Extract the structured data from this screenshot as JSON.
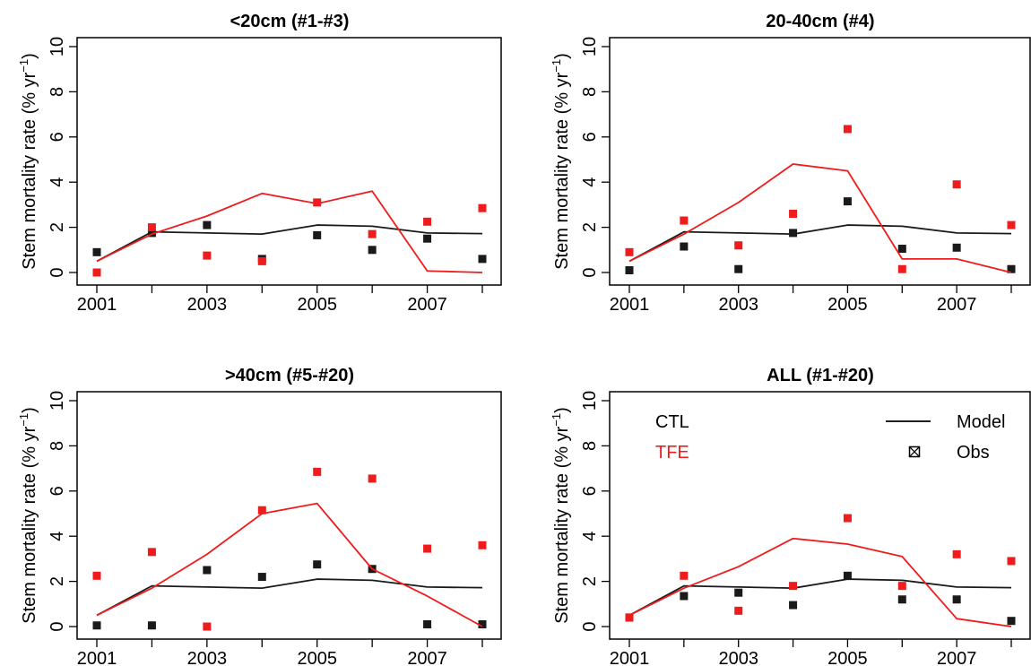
{
  "colors": {
    "ctl": "#1a1a1a",
    "tfe": "#ee1c1c"
  },
  "legend": {
    "group_labels": [
      "CTL",
      "TFE"
    ],
    "model_label": "Model",
    "obs_label": "Obs",
    "panel": 3
  },
  "chart_data": [
    {
      "type": "line",
      "title": "<20cm (#1-#3)",
      "ylabel": "Stem mortality rate (% yr⁻¹)",
      "ylabel_text": "Stem mortality rate (% yr",
      "ylabel_sup": "−1",
      "ylabel_close": ")",
      "xlim": [
        2001,
        2008
      ],
      "ylim": [
        0,
        10
      ],
      "xticks": [
        "2001",
        "2003",
        "2005",
        "2007"
      ],
      "yticks": [
        "0",
        "2",
        "4",
        "6",
        "8",
        "10"
      ],
      "x": [
        2001,
        2002,
        2003,
        2004,
        2005,
        2006,
        2007,
        2008
      ],
      "series": [
        {
          "name": "CTL",
          "model": [
            0.5,
            1.8,
            1.75,
            1.7,
            2.1,
            2.05,
            1.75,
            1.72
          ],
          "obs": [
            0.9,
            1.75,
            2.1,
            0.6,
            1.65,
            1.0,
            1.5,
            0.6
          ]
        },
        {
          "name": "TFE",
          "model": [
            0.5,
            1.7,
            2.5,
            3.5,
            3.05,
            3.6,
            0.07,
            0.0
          ],
          "obs": [
            0.0,
            2.0,
            0.75,
            0.5,
            3.1,
            1.7,
            2.25,
            2.85
          ]
        }
      ]
    },
    {
      "type": "line",
      "title": "20-40cm (#4)",
      "ylabel": "Stem mortality rate (% yr⁻¹)",
      "ylabel_text": "Stem mortality rate (% yr",
      "ylabel_sup": "−1",
      "ylabel_close": ")",
      "xlim": [
        2001,
        2008
      ],
      "ylim": [
        0,
        10
      ],
      "xticks": [
        "2001",
        "2003",
        "2005",
        "2007"
      ],
      "yticks": [
        "0",
        "2",
        "4",
        "6",
        "8",
        "10"
      ],
      "x": [
        2001,
        2002,
        2003,
        2004,
        2005,
        2006,
        2007,
        2008
      ],
      "series": [
        {
          "name": "CTL",
          "model": [
            0.5,
            1.8,
            1.75,
            1.7,
            2.1,
            2.05,
            1.75,
            1.72
          ],
          "obs": [
            0.1,
            1.15,
            0.15,
            1.75,
            3.15,
            1.05,
            1.1,
            0.15
          ]
        },
        {
          "name": "TFE",
          "model": [
            0.5,
            1.7,
            3.1,
            4.8,
            4.5,
            0.6,
            0.6,
            0.0
          ],
          "obs": [
            0.9,
            2.3,
            1.2,
            2.6,
            6.35,
            0.15,
            3.9,
            2.1
          ]
        }
      ]
    },
    {
      "type": "line",
      "title": ">40cm (#5-#20)",
      "ylabel": "Stem mortality rate (% yr⁻¹)",
      "ylabel_text": "Stem mortality rate (% yr",
      "ylabel_sup": "−1",
      "ylabel_close": ")",
      "xlim": [
        2001,
        2008
      ],
      "ylim": [
        0,
        10
      ],
      "xticks": [
        "2001",
        "2003",
        "2005",
        "2007"
      ],
      "yticks": [
        "0",
        "2",
        "4",
        "6",
        "8",
        "10"
      ],
      "x": [
        2001,
        2002,
        2003,
        2004,
        2005,
        2006,
        2007,
        2008
      ],
      "series": [
        {
          "name": "CTL",
          "model": [
            0.5,
            1.8,
            1.75,
            1.7,
            2.1,
            2.05,
            1.75,
            1.72
          ],
          "obs": [
            0.05,
            0.05,
            2.5,
            2.2,
            2.75,
            2.55,
            0.1,
            0.1
          ]
        },
        {
          "name": "TFE",
          "model": [
            0.5,
            1.7,
            3.2,
            5.0,
            5.45,
            2.55,
            1.35,
            0.0
          ],
          "obs": [
            2.25,
            3.3,
            0.0,
            5.15,
            6.85,
            6.55,
            3.45,
            3.6
          ]
        }
      ]
    },
    {
      "type": "line",
      "title": "ALL (#1-#20)",
      "ylabel": "Stem mortality rate (% yr⁻¹)",
      "ylabel_text": "Stem mortality rate (% yr",
      "ylabel_sup": "−1",
      "ylabel_close": ")",
      "xlim": [
        2001,
        2008
      ],
      "ylim": [
        0,
        10
      ],
      "xticks": [
        "2001",
        "2003",
        "2005",
        "2007"
      ],
      "yticks": [
        "0",
        "2",
        "4",
        "6",
        "8",
        "10"
      ],
      "x": [
        2001,
        2002,
        2003,
        2004,
        2005,
        2006,
        2007,
        2008
      ],
      "series": [
        {
          "name": "CTL",
          "model": [
            0.5,
            1.8,
            1.75,
            1.7,
            2.1,
            2.05,
            1.75,
            1.72
          ],
          "obs": [
            0.4,
            1.35,
            1.5,
            0.95,
            2.25,
            1.2,
            1.2,
            0.25
          ]
        },
        {
          "name": "TFE",
          "model": [
            0.5,
            1.7,
            2.65,
            3.9,
            3.65,
            3.1,
            0.35,
            0.0
          ],
          "obs": [
            0.4,
            2.25,
            0.7,
            1.8,
            4.8,
            1.8,
            3.2,
            2.9
          ]
        }
      ]
    }
  ]
}
